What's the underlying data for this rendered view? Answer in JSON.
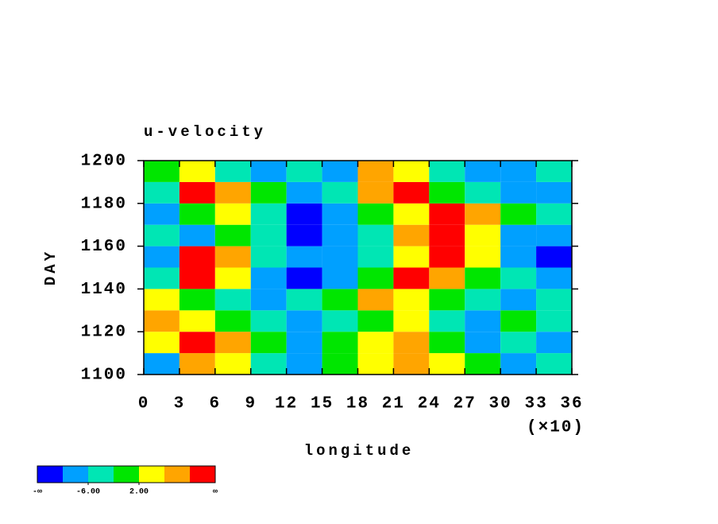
{
  "chart_data": {
    "type": "contour",
    "title": "u-velocity",
    "x_label": "longitude",
    "x_multiplier_label": "(×10)",
    "y_label": "DAY",
    "xlim": [
      0,
      36
    ],
    "ylim": [
      1100,
      1200
    ],
    "xticks": [
      0,
      3,
      6,
      9,
      12,
      15,
      18,
      21,
      24,
      27,
      30,
      33,
      36
    ],
    "yticks": [
      1100,
      1120,
      1140,
      1160,
      1180,
      1200
    ],
    "x_edges": [
      0,
      3,
      6,
      9,
      12,
      15,
      18,
      21,
      24,
      27,
      30,
      33,
      36
    ],
    "y_edges": [
      1100,
      1110,
      1120,
      1130,
      1140,
      1150,
      1160,
      1170,
      1180,
      1190,
      1200
    ],
    "z": [
      [
        -8,
        8,
        4,
        -4,
        -8,
        0,
        4,
        8,
        4,
        0,
        -8,
        -4
      ],
      [
        4,
        12,
        8,
        0,
        -8,
        0,
        4,
        8,
        0,
        -8,
        -4,
        -8
      ],
      [
        8,
        4,
        0,
        -4,
        -8,
        -4,
        0,
        4,
        -4,
        -8,
        0,
        -4
      ],
      [
        4,
        0,
        -4,
        -8,
        -4,
        0,
        8,
        4,
        0,
        -4,
        -8,
        -4
      ],
      [
        -4,
        12,
        4,
        -8,
        -12,
        -8,
        0,
        12,
        8,
        0,
        -4,
        -8
      ],
      [
        -8,
        12,
        8,
        -4,
        -8,
        -8,
        -4,
        4,
        12,
        4,
        -8,
        -12
      ],
      [
        -4,
        -8,
        0,
        -4,
        -12,
        -8,
        -4,
        8,
        12,
        4,
        -8,
        -8
      ],
      [
        -8,
        0,
        4,
        -4,
        -12,
        -8,
        0,
        4,
        12,
        8,
        0,
        -4
      ],
      [
        -4,
        12,
        8,
        0,
        -8,
        -4,
        8,
        12,
        0,
        -4,
        -8,
        -8
      ],
      [
        0,
        4,
        -4,
        -8,
        -4,
        -8,
        8,
        4,
        -4,
        -8,
        -8,
        -4
      ]
    ],
    "levels": [
      -10,
      -6,
      -2,
      2,
      6,
      10
    ],
    "colors": [
      "#0000ff",
      "#00a0ff",
      "#00e6b4",
      "#00e600",
      "#ffff00",
      "#ffa500",
      "#ff0000"
    ],
    "colorbar_ends": [
      "-∞",
      "∞"
    ],
    "colorbar_ticks": [
      {
        "value": -6,
        "label": "-6.00"
      },
      {
        "value": 2,
        "label": "2.00"
      }
    ]
  }
}
